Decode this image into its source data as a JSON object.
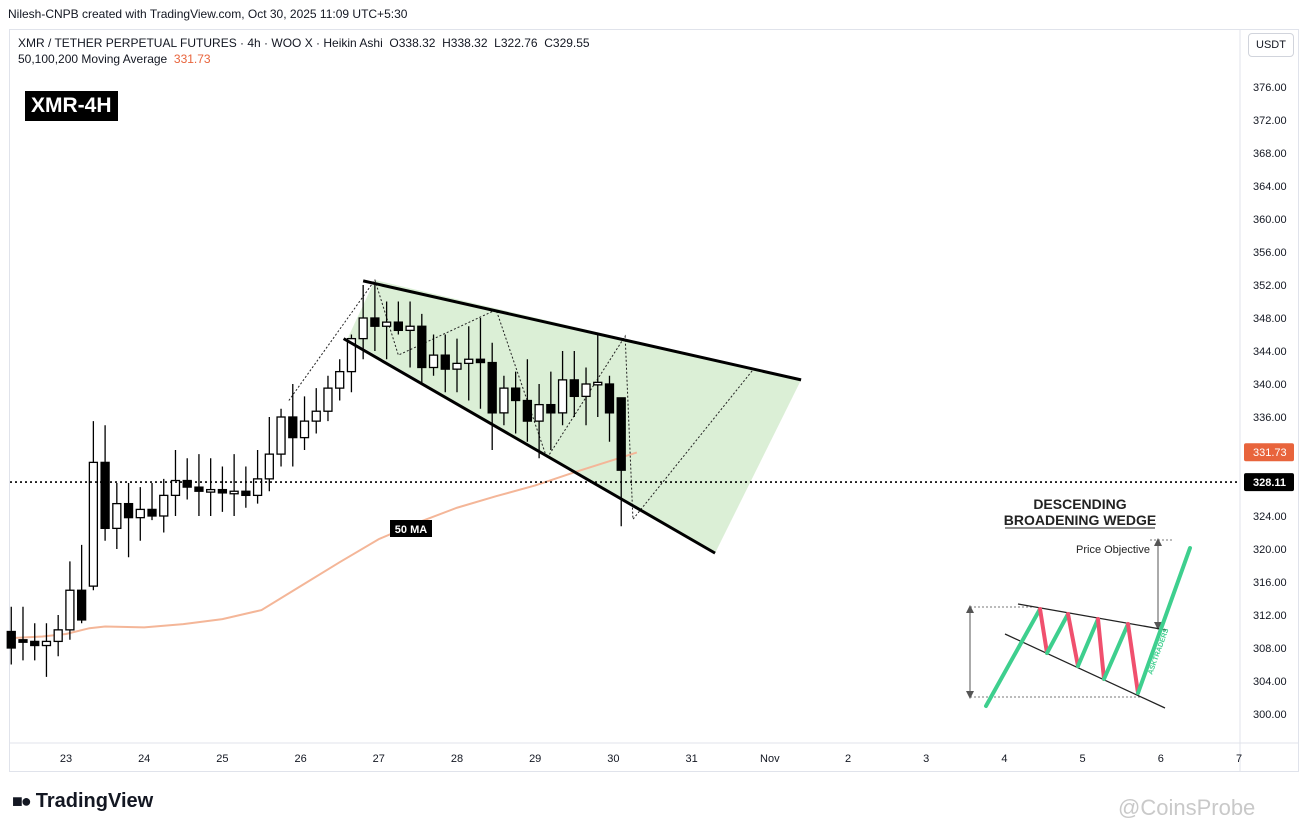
{
  "header": {
    "created_by": "Nilesh-CNPB created with TradingView.com, Oct 30, 2025 11:09 UTC+5:30"
  },
  "legend": {
    "symbol_line": "XMR / TETHER PERPETUAL FUTURES · 4h · WOO X · Heikin Ashi",
    "open": "O338.32",
    "high": "H338.32",
    "low": "L322.76",
    "close": "C329.55",
    "ma_label": "50,100,200 Moving Average",
    "ma_value": "331.73"
  },
  "tag": "XMR-4H",
  "currency_button": "USDT",
  "footer": {
    "brand": "TradingView",
    "watermark": "@CoinsProbe"
  },
  "colors": {
    "ma_line": "#f4b698",
    "ma_label_bg": "#e8643c",
    "wedge_fill": "#cfe9c8",
    "candle": "#000000",
    "bull_leg": "#3ecf8e",
    "bear_leg": "#f0506e"
  },
  "chart_data": {
    "type": "candlestick",
    "ylim": [
      298,
      380
    ],
    "y_ticks": [
      300,
      304,
      308,
      312,
      316,
      320,
      324,
      328,
      332,
      336,
      340,
      344,
      348,
      352,
      356,
      360,
      364,
      368,
      372,
      376
    ],
    "x_ticks": [
      "23",
      "24",
      "25",
      "26",
      "27",
      "28",
      "29",
      "30",
      "31",
      "Nov",
      "2",
      "3",
      "4",
      "5",
      "6",
      "7"
    ],
    "current_price": 328.11,
    "current_price_label": "328.11",
    "ma_value_label": "331.73",
    "ma_label": "50 MA",
    "ma_line": [
      [
        -0.7,
        309.2
      ],
      [
        -0.3,
        309.4
      ],
      [
        0,
        309.7
      ],
      [
        0.3,
        310.4
      ],
      [
        0.5,
        310.6
      ],
      [
        1,
        310.5
      ],
      [
        1.5,
        310.9
      ],
      [
        2,
        311.5
      ],
      [
        2.5,
        312.6
      ],
      [
        3,
        315.5
      ],
      [
        3.5,
        318.4
      ],
      [
        4,
        321.2
      ],
      [
        4.5,
        323.2
      ],
      [
        5,
        325.0
      ],
      [
        5.5,
        326.4
      ],
      [
        6,
        327.7
      ],
      [
        6.5,
        329.3
      ],
      [
        7,
        330.8
      ],
      [
        7.3,
        331.7
      ]
    ],
    "candles": [
      {
        "d": -0.7,
        "o": 310,
        "h": 313,
        "l": 306,
        "c": 308
      },
      {
        "d": -0.55,
        "o": 309,
        "h": 313,
        "l": 306.5,
        "c": 308.8
      },
      {
        "d": -0.4,
        "o": 308.8,
        "h": 311,
        "l": 306.5,
        "c": 308.3
      },
      {
        "d": -0.25,
        "o": 308.3,
        "h": 311,
        "l": 304.5,
        "c": 308.8
      },
      {
        "d": -0.1,
        "o": 308.8,
        "h": 312,
        "l": 307,
        "c": 310.2
      },
      {
        "d": 0.05,
        "o": 310.2,
        "h": 318.5,
        "l": 309,
        "c": 315.0
      },
      {
        "d": 0.2,
        "o": 315,
        "h": 320.5,
        "l": 311,
        "c": 311.4
      },
      {
        "d": 0.35,
        "o": 315.5,
        "h": 335.5,
        "l": 315,
        "c": 330.5
      },
      {
        "d": 0.5,
        "o": 330.5,
        "h": 335,
        "l": 321,
        "c": 322.5
      },
      {
        "d": 0.65,
        "o": 322.5,
        "h": 328,
        "l": 320,
        "c": 325.5
      },
      {
        "d": 0.8,
        "o": 325.5,
        "h": 328,
        "l": 319,
        "c": 323.8
      },
      {
        "d": 0.95,
        "o": 323.8,
        "h": 327.5,
        "l": 321,
        "c": 324.8
      },
      {
        "d": 1.1,
        "o": 324.8,
        "h": 328,
        "l": 323.5,
        "c": 324.0
      },
      {
        "d": 1.25,
        "o": 324.0,
        "h": 328.5,
        "l": 322,
        "c": 326.5
      },
      {
        "d": 1.4,
        "o": 326.5,
        "h": 332,
        "l": 324,
        "c": 328.3
      },
      {
        "d": 1.55,
        "o": 328.3,
        "h": 331,
        "l": 326,
        "c": 327.5
      },
      {
        "d": 1.7,
        "o": 327.5,
        "h": 331.5,
        "l": 324,
        "c": 327.0
      },
      {
        "d": 1.85,
        "o": 327.0,
        "h": 331,
        "l": 324,
        "c": 327.2
      },
      {
        "d": 2.0,
        "o": 327.2,
        "h": 330,
        "l": 324.5,
        "c": 326.8
      },
      {
        "d": 2.15,
        "o": 326.8,
        "h": 331.5,
        "l": 324,
        "c": 327.0
      },
      {
        "d": 2.3,
        "o": 327.0,
        "h": 330,
        "l": 325,
        "c": 326.5
      },
      {
        "d": 2.45,
        "o": 326.5,
        "h": 332,
        "l": 325.5,
        "c": 328.5
      },
      {
        "d": 2.6,
        "o": 328.5,
        "h": 336,
        "l": 327,
        "c": 331.5
      },
      {
        "d": 2.75,
        "o": 331.5,
        "h": 337,
        "l": 330,
        "c": 336.0
      },
      {
        "d": 2.9,
        "o": 336.0,
        "h": 340,
        "l": 330,
        "c": 333.5
      },
      {
        "d": 3.05,
        "o": 333.5,
        "h": 338.5,
        "l": 332,
        "c": 335.5
      },
      {
        "d": 3.2,
        "o": 335.5,
        "h": 339.5,
        "l": 334,
        "c": 336.7
      },
      {
        "d": 3.35,
        "o": 336.7,
        "h": 341,
        "l": 335.5,
        "c": 339.5
      },
      {
        "d": 3.5,
        "o": 339.5,
        "h": 343,
        "l": 338,
        "c": 341.5
      },
      {
        "d": 3.65,
        "o": 341.5,
        "h": 346,
        "l": 339,
        "c": 345.5
      },
      {
        "d": 3.8,
        "o": 345.5,
        "h": 352,
        "l": 343,
        "c": 348.0
      },
      {
        "d": 3.95,
        "o": 348.0,
        "h": 352,
        "l": 344,
        "c": 347.0
      },
      {
        "d": 4.1,
        "o": 347.0,
        "h": 350,
        "l": 343,
        "c": 347.5
      },
      {
        "d": 4.25,
        "o": 347.5,
        "h": 350,
        "l": 346,
        "c": 346.5
      },
      {
        "d": 4.4,
        "o": 346.5,
        "h": 350,
        "l": 342,
        "c": 347.0
      },
      {
        "d": 4.55,
        "o": 347.0,
        "h": 348.5,
        "l": 340,
        "c": 342.0
      },
      {
        "d": 4.7,
        "o": 342.0,
        "h": 346,
        "l": 341,
        "c": 343.5
      },
      {
        "d": 4.85,
        "o": 343.5,
        "h": 346,
        "l": 339,
        "c": 341.8
      },
      {
        "d": 5.0,
        "o": 341.8,
        "h": 345.5,
        "l": 339,
        "c": 342.5
      },
      {
        "d": 5.15,
        "o": 342.5,
        "h": 347,
        "l": 338,
        "c": 343.0
      },
      {
        "d": 5.3,
        "o": 343.0,
        "h": 348,
        "l": 337,
        "c": 342.6
      },
      {
        "d": 5.45,
        "o": 342.6,
        "h": 345,
        "l": 332,
        "c": 336.5
      },
      {
        "d": 5.6,
        "o": 336.5,
        "h": 341,
        "l": 335,
        "c": 339.5
      },
      {
        "d": 5.75,
        "o": 339.5,
        "h": 341.5,
        "l": 334,
        "c": 338.0
      },
      {
        "d": 5.9,
        "o": 338.0,
        "h": 343,
        "l": 333,
        "c": 335.5
      },
      {
        "d": 6.05,
        "o": 335.5,
        "h": 340,
        "l": 331,
        "c": 337.5
      },
      {
        "d": 6.2,
        "o": 337.5,
        "h": 341.5,
        "l": 332,
        "c": 336.5
      },
      {
        "d": 6.35,
        "o": 336.5,
        "h": 344,
        "l": 335,
        "c": 340.5
      },
      {
        "d": 6.5,
        "o": 340.5,
        "h": 344,
        "l": 336,
        "c": 338.5
      },
      {
        "d": 6.65,
        "o": 338.5,
        "h": 342,
        "l": 335,
        "c": 340.0
      },
      {
        "d": 6.8,
        "o": 340.0,
        "h": 346,
        "l": 336,
        "c": 340.2
      },
      {
        "d": 6.95,
        "o": 340.0,
        "h": 341,
        "l": 333,
        "c": 336.5
      },
      {
        "d": 7.1,
        "o": 338.32,
        "h": 338.32,
        "l": 322.76,
        "c": 329.55
      }
    ],
    "wedge": {
      "upper": [
        [
          3.8,
          352.5
        ],
        [
          9.4,
          340.5
        ]
      ],
      "lower": [
        [
          3.55,
          345.5
        ],
        [
          8.3,
          319.5
        ]
      ],
      "fill": [
        [
          3.6,
          345.5
        ],
        [
          3.95,
          352.6
        ],
        [
          9.4,
          340.5
        ],
        [
          8.3,
          319.5
        ]
      ]
    },
    "zigzag": [
      [
        2.85,
        338
      ],
      [
        3.95,
        352.6
      ],
      [
        4.25,
        343.5
      ],
      [
        5.5,
        349.0
      ],
      [
        6.15,
        331.0
      ],
      [
        7.15,
        345.8
      ],
      [
        7.25,
        323.6
      ],
      [
        8.8,
        341.9
      ]
    ],
    "inset": {
      "title_line1": "DESCENDING",
      "title_line2": "BROADENING WEDGE",
      "price_objective": "Price Objective",
      "watermark": "ASKTRADERS"
    }
  }
}
